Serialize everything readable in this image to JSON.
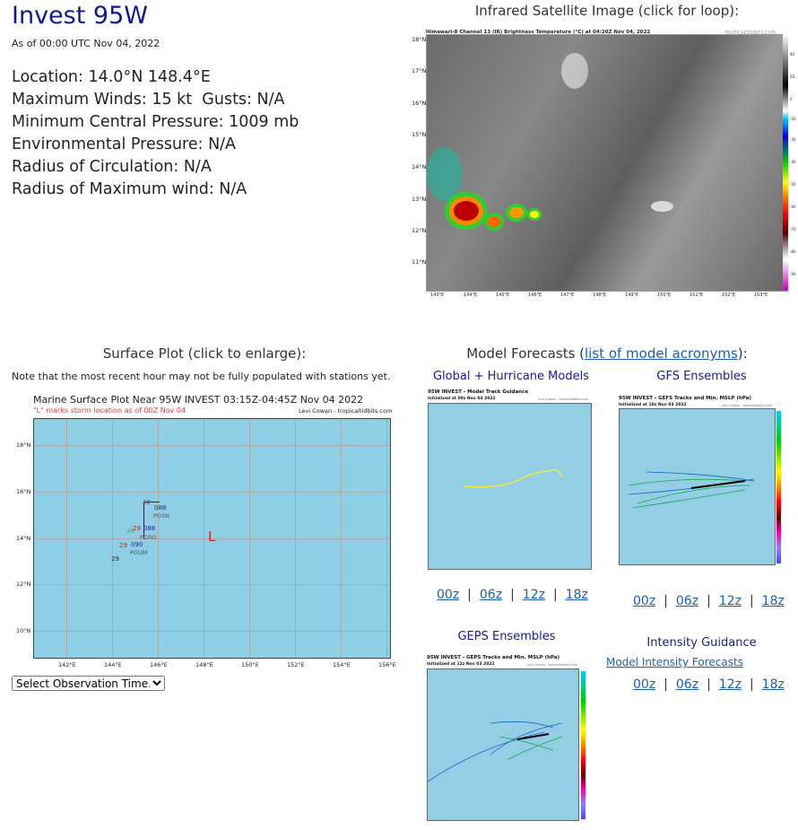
{
  "storm": {
    "title": "Invest 95W",
    "as_of": "As of 00:00 UTC Nov 04, 2022",
    "details": [
      "Location: 14.0°N 148.4°E",
      "Maximum Winds: 15 kt  Gusts: N/A",
      "Minimum Central Pressure: 1009 mb",
      "Environmental Pressure: N/A",
      "Radius of Circulation: N/A",
      "Radius of Maximum wind: N/A"
    ]
  },
  "satellite": {
    "heading": "Infrared Satellite Image (click for loop):",
    "image_title": "Himawari-8 Channel 13 (IR) Brightness Temperature (°C) at 04:20Z Nov 04, 2022",
    "credit": "TROPICALTIDBITS.COM",
    "lat_ticks": [
      "18°N",
      "17°N",
      "16°N",
      "15°N",
      "14°N",
      "13°N",
      "12°N",
      "11°N"
    ],
    "lon_ticks": [
      "143°E",
      "144°E",
      "145°E",
      "146°E",
      "147°E",
      "148°E",
      "149°E",
      "150°E",
      "151°E",
      "152°E",
      "153°E"
    ],
    "scale_ticks": [
      "40",
      "20",
      "0",
      "-20",
      "-30",
      "-40",
      "-50",
      "-60",
      "-70",
      "-80",
      "-90"
    ]
  },
  "surface": {
    "heading": "Surface Plot (click to enlarge):",
    "note": "Note that the most recent hour may not be fully populated with stations yet.",
    "plot_title": "Marine Surface Plot Near 95W INVEST 03:15Z-04:45Z Nov 04 2022",
    "plot_subtitle": "\"L\" marks storm location as of 00Z Nov 04",
    "credit": "Levi Cowan - tropicaltidbits.com",
    "lat_ticks": [
      "18°N",
      "16°N",
      "14°N",
      "12°N",
      "10°N"
    ],
    "lon_ticks": [
      "142°E",
      "144°E",
      "146°E",
      "148°E",
      "150°E",
      "152°E",
      "154°E",
      "156°E"
    ],
    "station_labels": [
      "32",
      "088",
      "PGSN",
      "29",
      "088",
      "PGRO",
      "29",
      "090",
      "29",
      "PGUM",
      "29"
    ],
    "storm_marker": "L",
    "select_label": "Select Observation Time..."
  },
  "models": {
    "heading_prefix": "Model Forecasts (",
    "heading_link": "list of model acronyms",
    "heading_suffix": "):",
    "global": {
      "title": "Global + Hurricane Models",
      "img_title": "95W INVEST - Model Track Guidance",
      "img_sub": "Initialized at 00z Nov 04 2022",
      "credit": "Levi Cowan - tropicaltidbits.com"
    },
    "gefs": {
      "title": "GFS Ensembles",
      "img_title": "95W INVEST - GEFS Tracks and Min. MSLP (hPa)",
      "img_sub": "Initialized at 18z Nov 03 2022",
      "credit": "Levi Cowan - tropicaltidbits.com"
    },
    "geps": {
      "title": "GEPS Ensembles",
      "img_title": "95W INVEST - GEPS Tracks and Min. MSLP (hPa)",
      "img_sub": "Initialized at 12z Nov 03 2022",
      "credit": "Levi Cowan - tropicaltidbits.com"
    },
    "intensity": {
      "title": "Intensity Guidance",
      "link": "Model Intensity Forecasts"
    },
    "cycles": [
      "00z",
      "06z",
      "12z",
      "18z"
    ],
    "separator": "|"
  }
}
